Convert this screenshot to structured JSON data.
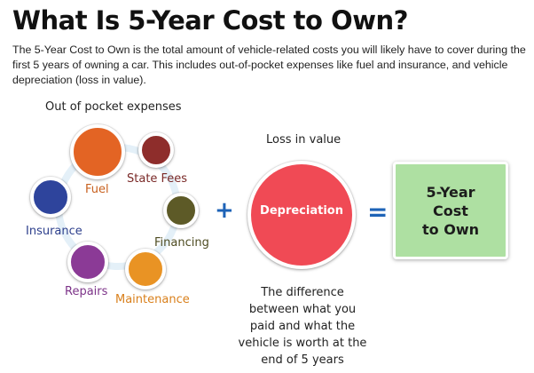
{
  "title": "What Is 5-Year Cost to Own?",
  "intro": "The 5-Year Cost to Own is the total amount of vehicle-related costs you will likely have to cover during the first 5 years of owning a car. This includes out-of-pocket expenses like fuel and insurance, and vehicle depreciation (loss in value).",
  "out_of_pocket": {
    "heading": "Out of pocket expenses",
    "items": [
      {
        "label": "Fuel",
        "color": "#e36424",
        "label_color": "#c8611f"
      },
      {
        "label": "State Fees",
        "color": "#8e2d2b",
        "label_color": "#7a2a28"
      },
      {
        "label": "Financing",
        "color": "#5d5a27",
        "label_color": "#4e4c22"
      },
      {
        "label": "Maintenance",
        "color": "#e99324",
        "label_color": "#d9801c"
      },
      {
        "label": "Repairs",
        "color": "#8b3a96",
        "label_color": "#7d3489"
      },
      {
        "label": "Insurance",
        "color": "#2e449c",
        "label_color": "#2d3f8c"
      }
    ]
  },
  "plus_symbol": "+",
  "equals_symbol": "=",
  "loss": {
    "heading": "Loss in value",
    "circle_label": "Depreciation",
    "circle_color": "#f04a55",
    "description": "The difference between what you paid and what the vehicle is worth at the end of 5 years"
  },
  "result": {
    "label": "5-Year\nCost\nto Own",
    "color": "#aee0a2"
  }
}
